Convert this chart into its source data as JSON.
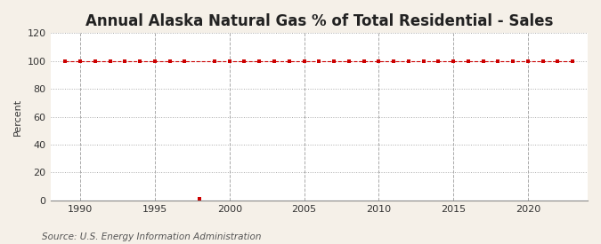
{
  "title": "Annual Alaska Natural Gas % of Total Residential - Sales",
  "ylabel": "Percent",
  "source": "Source: U.S. Energy Information Administration",
  "background_color": "#f5f0e8",
  "plot_background_color": "#ffffff",
  "xlim": [
    1988,
    2024
  ],
  "ylim": [
    0,
    120
  ],
  "yticks": [
    0,
    20,
    40,
    60,
    80,
    100,
    120
  ],
  "xticks": [
    1990,
    1995,
    2000,
    2005,
    2010,
    2015,
    2020
  ],
  "line_color": "#cc0000",
  "main_years": [
    1989,
    1990,
    1991,
    1992,
    1993,
    1994,
    1995,
    1996,
    1997,
    1999,
    2000,
    2001,
    2002,
    2003,
    2004,
    2005,
    2006,
    2007,
    2008,
    2009,
    2010,
    2011,
    2012,
    2013,
    2014,
    2015,
    2016,
    2017,
    2018,
    2019,
    2020,
    2021,
    2022,
    2023
  ],
  "main_values": [
    100,
    100,
    100,
    100,
    100,
    100,
    100,
    100,
    100,
    100,
    100,
    100,
    100,
    100,
    100,
    100,
    100,
    100,
    100,
    100,
    100,
    100,
    100,
    100,
    100,
    100,
    100,
    100,
    100,
    100,
    100,
    100,
    100,
    100
  ],
  "outlier_year": [
    1998
  ],
  "outlier_value": [
    1
  ],
  "marker_style": "s",
  "marker_size": 3.5,
  "line_style": "--",
  "line_width": 0.8,
  "grid_color": "#aaaaaa",
  "grid_style": ":",
  "vgrid_style": "--",
  "title_fontsize": 12,
  "label_fontsize": 8,
  "tick_fontsize": 8,
  "source_fontsize": 7.5
}
